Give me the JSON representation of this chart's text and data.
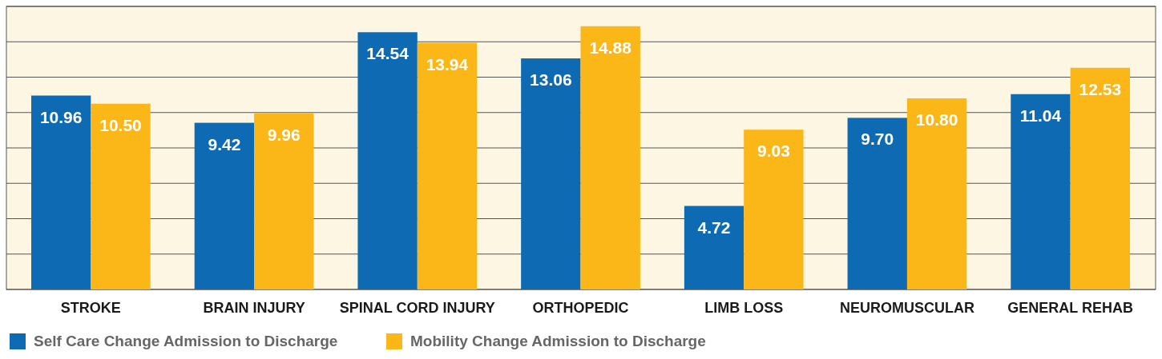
{
  "chart_data": {
    "type": "bar",
    "categories": [
      "STROKE",
      "BRAIN INJURY",
      "SPINAL CORD INJURY",
      "ORTHOPEDIC",
      "LIMB LOSS",
      "NEUROMUSCULAR",
      "GENERAL REHAB"
    ],
    "series": [
      {
        "name": "Self Care Change Admission to Discharge",
        "color": "#0d6ab3",
        "values": [
          10.96,
          9.42,
          14.54,
          13.06,
          4.72,
          9.7,
          11.04
        ],
        "value_labels": [
          "10.96",
          "9.42",
          "14.54",
          "13.06",
          "4.72",
          "9.70",
          "11.04"
        ]
      },
      {
        "name": "Mobility Change Admission to Discharge",
        "color": "#fbb617",
        "values": [
          10.5,
          9.96,
          13.94,
          14.88,
          9.03,
          10.8,
          12.53
        ],
        "value_labels": [
          "10.50",
          "9.96",
          "13.94",
          "14.88",
          "9.03",
          "10.80",
          "12.53"
        ]
      }
    ],
    "ylim": [
      0,
      16
    ],
    "yticks": [
      {
        "value": 0,
        "label": null
      },
      {
        "value": 2,
        "label": null
      },
      {
        "value": 4,
        "label": null
      },
      {
        "value": 6,
        "label": null
      },
      {
        "value": 8,
        "label": null
      },
      {
        "value": 10,
        "label": null
      },
      {
        "value": 12,
        "label": null
      },
      {
        "value": 14,
        "label": null
      },
      {
        "value": 16,
        "label": null
      }
    ],
    "tick_labels": "x",
    "grid": "y",
    "legend": "bottom left"
  }
}
